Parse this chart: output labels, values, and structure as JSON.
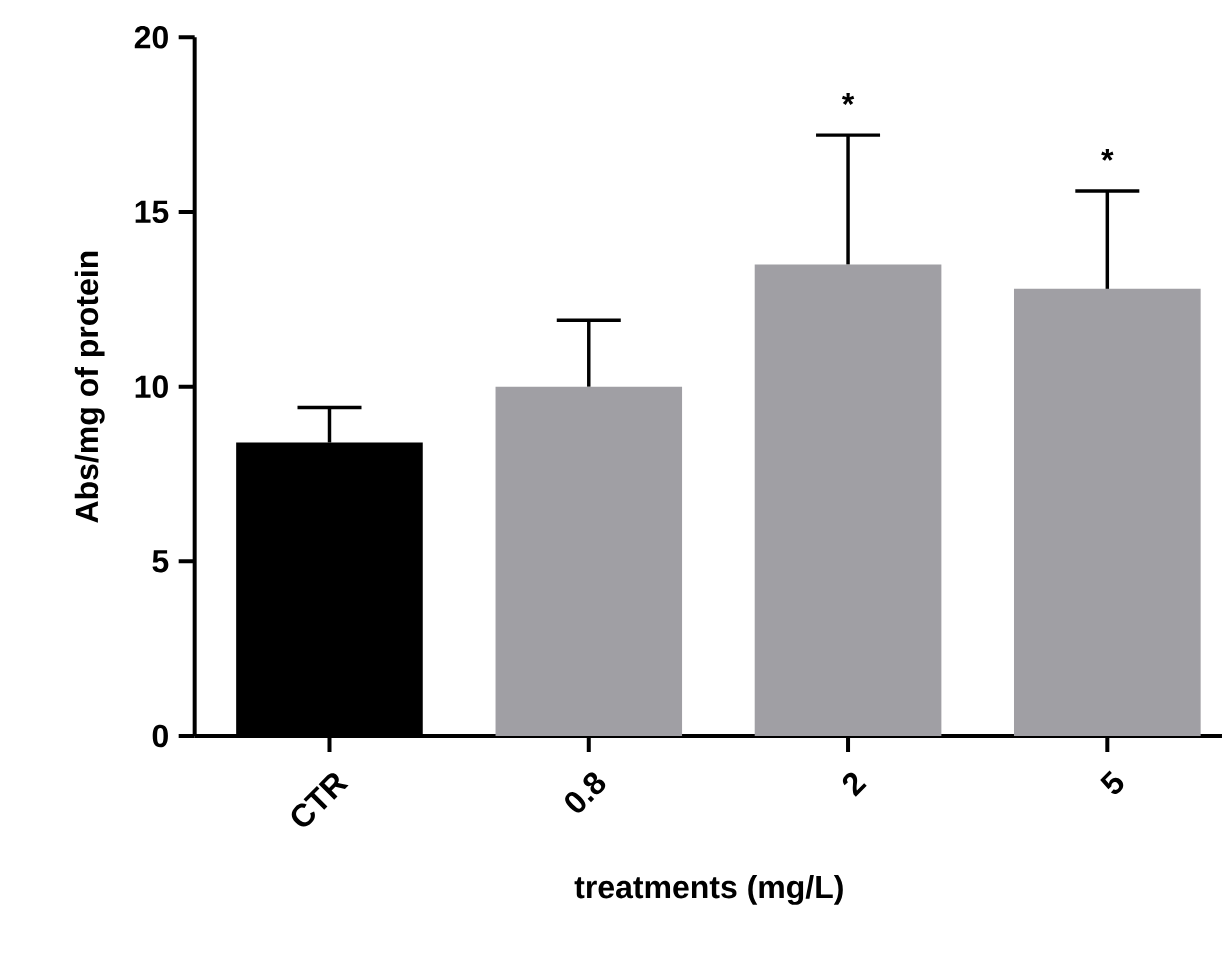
{
  "chart_data": {
    "type": "bar",
    "xlabel": "treatments (mg/L)",
    "ylabel": "Abs/mg of protein",
    "categories": [
      "CTR",
      "0.8",
      "2",
      "5"
    ],
    "values": [
      8.4,
      10.0,
      13.5,
      12.8
    ],
    "colors": [
      "#000000",
      "#a09fa4",
      "#a09fa4",
      "#a09fa4"
    ],
    "errors": [
      [
        8.4,
        9.4
      ],
      [
        10.0,
        11.9
      ],
      [
        13.5,
        17.2
      ],
      [
        12.8,
        15.6
      ]
    ],
    "ylim": [
      0,
      20
    ],
    "yticks": [
      0,
      5,
      10,
      15,
      20
    ],
    "grid": false,
    "annotations": [
      "*",
      "*"
    ]
  }
}
